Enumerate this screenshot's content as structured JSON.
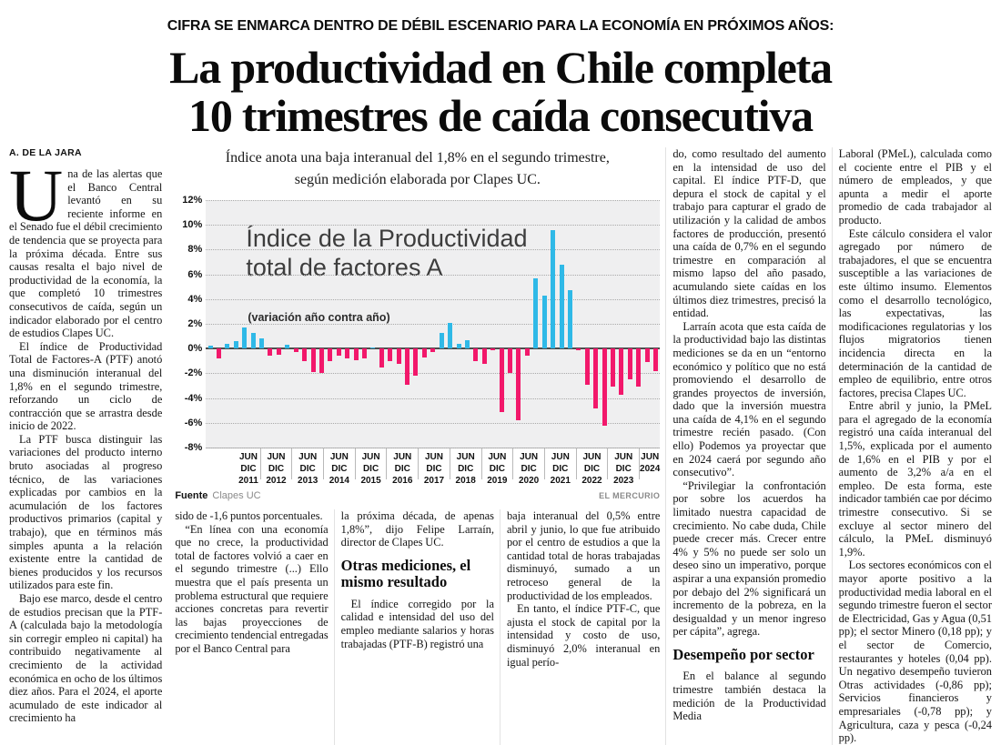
{
  "kicker": "CIFRA SE ENMARCA DENTRO DE DÉBIL ESCENARIO PARA LA ECONOMÍA EN PRÓXIMOS AÑOS:",
  "headline_line1": "La productividad en Chile completa",
  "headline_line2": "10 trimestres de caída consecutiva",
  "byline": "A. DE LA JARA",
  "chart": {
    "subtitle_line1": "Índice anota una baja interanual del 1,8% en el segundo trimestre,",
    "subtitle_line2": "según medición elaborada por Clapes UC.",
    "source_label": "Fuente",
    "source_value": "Clapes UC",
    "credit": "EL MERCURIO"
  },
  "chart_data": {
    "type": "bar",
    "title_line1": "Índice de la Productividad",
    "title_line2": "total de factores A",
    "note": "(variación año contra año)",
    "ylabel": "variación año contra año (%)",
    "ylim": [
      -8,
      12
    ],
    "ytick_step": 2,
    "ytick_labels": [
      "12%",
      "10%",
      "8%",
      "6%",
      "4%",
      "2%",
      "0%",
      "-2%",
      "-4%",
      "-6%",
      "-8%"
    ],
    "grid": "dotted horizontal",
    "colors": {
      "positive": "#2fb9e7",
      "negative": "#f2186b",
      "panel": "#efeff0"
    },
    "year_groups": [
      {
        "year": "2011",
        "ticks": "JUN DIC",
        "count": 3
      },
      {
        "year": "2012",
        "ticks": "JUN DIC",
        "count": 4
      },
      {
        "year": "2013",
        "ticks": "JUN DIC",
        "count": 4
      },
      {
        "year": "2014",
        "ticks": "JUN DIC",
        "count": 4
      },
      {
        "year": "2015",
        "ticks": "JUN DIC",
        "count": 4
      },
      {
        "year": "2016",
        "ticks": "JUN DIC",
        "count": 4
      },
      {
        "year": "2017",
        "ticks": "JUN DIC",
        "count": 4
      },
      {
        "year": "2018",
        "ticks": "JUN DIC",
        "count": 4
      },
      {
        "year": "2019",
        "ticks": "JUN DIC",
        "count": 4
      },
      {
        "year": "2020",
        "ticks": "JUN DIC",
        "count": 4
      },
      {
        "year": "2021",
        "ticks": "JUN DIC",
        "count": 4
      },
      {
        "year": "2022",
        "ticks": "JUN DIC",
        "count": 4
      },
      {
        "year": "2023",
        "ticks": "JUN DIC",
        "count": 4
      },
      {
        "year": "2024",
        "ticks": "JUN",
        "count": 2
      }
    ],
    "values": [
      0.2,
      -0.8,
      0.4,
      0.6,
      1.7,
      1.25,
      0.8,
      -0.6,
      -0.5,
      0.3,
      -0.3,
      -1.05,
      -1.9,
      -2.0,
      -1.05,
      -0.6,
      -0.8,
      -0.95,
      -0.8,
      0.1,
      -1.5,
      -1.05,
      -1.2,
      -2.9,
      -2.2,
      -0.7,
      -0.3,
      1.3,
      2.1,
      0.4,
      0.7,
      -1.0,
      -1.2,
      -0.05,
      -5.1,
      -2.0,
      -5.8,
      -0.6,
      5.7,
      4.3,
      9.6,
      6.8,
      4.7,
      -0.1,
      -2.9,
      -4.85,
      -6.2,
      -3.1,
      -3.7,
      -2.5,
      -3.05,
      -1.1,
      -1.8
    ]
  },
  "columns": {
    "col1": {
      "blocks": [
        {
          "type": "p",
          "dropcap": "U",
          "text": "na de las alertas que el Banco Central levantó en su reciente informe en el Senado fue el débil crecimiento de tendencia que se proyecta para la próxima década. Entre sus causas resalta el bajo nivel de productividad de la economía, la que completó 10 trimestres consecutivos de caída, según un indicador elaborado por el centro de estudios Clapes UC."
        },
        {
          "type": "p",
          "text": "El índice de Productividad Total de Factores-A (PTF) anotó una disminución interanual del 1,8% en el segundo trimestre, reforzando un ciclo de contracción que se arrastra desde inicio de 2022."
        },
        {
          "type": "p",
          "text": "La PTF busca distinguir las variaciones del producto interno bruto asociadas al progreso técnico, de las variaciones explicadas por cambios en la acumulación de los factores productivos primarios (capital y trabajo), que en términos más simples apunta a la relación existente entre la cantidad de bienes producidos y los recursos utilizados para este fin."
        },
        {
          "type": "p",
          "text": "Bajo ese marco, desde el centro de estudios precisan que la PTF-A (calculada bajo la metodología sin corregir empleo ni capital) ha contribuido negativamente al crecimiento de la actividad económica en ocho de los últimos diez años. Para el 2024, el aporte acumulado de este indicador al crecimiento ha"
        }
      ]
    },
    "col2": {
      "blocks": [
        {
          "type": "p",
          "indent": false,
          "text": "sido de -1,6 puntos porcentuales."
        },
        {
          "type": "p",
          "text": "“En línea con una economía que no crece, la productividad total de factores volvió a caer en el segundo trimestre (...) Ello muestra que el país presenta un problema estructural que requiere acciones concretas para revertir las bajas proyecciones de crecimiento tendencial entregadas por el Banco Central para"
        }
      ]
    },
    "col3": {
      "blocks": [
        {
          "type": "p",
          "indent": false,
          "text": "la próxima década, de apenas 1,8%”, dijo Felipe Larraín, director de Clapes UC."
        },
        {
          "type": "subhead",
          "text": "Otras mediciones, el mismo resultado"
        },
        {
          "type": "p",
          "text": "El índice corregido por la calidad e intensidad del uso del empleo mediante salarios y horas trabajadas (PTF-B) registró una"
        }
      ]
    },
    "col4": {
      "blocks": [
        {
          "type": "p",
          "indent": false,
          "text": "baja interanual del 0,5% entre abril y junio, lo que fue atribuido por el centro de estudios a que la cantidad total de horas trabajadas disminuyó, sumado a un retroceso general de la productividad de los empleados."
        },
        {
          "type": "p",
          "text": "En tanto, el índice PTF-C, que ajusta el stock de capital por la intensidad y costo de uso, disminuyó 2,0% interanual en igual perío-"
        }
      ]
    },
    "col5": {
      "blocks": [
        {
          "type": "p",
          "indent": false,
          "text": "do, como resultado del aumento en la intensidad de uso del capital. El índice PTF-D, que depura el stock de capital y el trabajo para capturar el grado de utilización y la calidad de ambos factores de producción, presentó una caída de 0,7% en el segundo trimestre en comparación al mismo lapso del año pasado, acumulando siete caídas en los últimos diez trimestres, precisó la entidad."
        },
        {
          "type": "p",
          "text": "Larraín acota que esta caída de la productividad bajo las distintas mediciones se da en un “entorno económico y político que no está promoviendo el desarrollo de grandes proyectos de inversión, dado que la inversión muestra una caída de 4,1% en el segundo trimestre recién pasado. (Con ello) Podemos ya proyectar que en 2024 caerá por segundo año consecutivo”."
        },
        {
          "type": "p",
          "text": "“Privilegiar la confrontación por sobre los acuerdos ha limitado nuestra capacidad de crecimiento. No cabe duda, Chile puede crecer más. Crecer entre 4% y 5% no puede ser solo un deseo sino un imperativo, porque aspirar a una expansión promedio por debajo del 2% significará un incremento de la pobreza, en la desigualdad y un menor ingreso per cápita”, agrega."
        },
        {
          "type": "subhead",
          "text": "Desempeño por sector"
        },
        {
          "type": "p",
          "text": "En el balance al segundo trimestre también destaca la medición de la Productividad Media"
        }
      ]
    },
    "col6": {
      "blocks": [
        {
          "type": "p",
          "indent": false,
          "text": "Laboral (PMeL), calculada como el cociente entre el PIB y el número de empleados, y que apunta a medir el aporte promedio de cada trabajador al producto."
        },
        {
          "type": "p",
          "text": "Este cálculo considera el valor agregado por número de trabajadores, el que se encuentra susceptible a las variaciones de este último insumo. Elementos como el desarrollo tecnológico, las expectativas, las modificaciones regulatorias y los flujos migratorios tienen incidencia directa en la determinación de la cantidad de empleo de equilibrio, entre otros factores, precisa Clapes UC."
        },
        {
          "type": "p",
          "text": "Entre abril y junio, la PMeL para el agregado de la economía registró una caída interanual del 1,5%, explicada por el aumento de 1,6% en el PIB y por el aumento de 3,2% a/a en el empleo. De esta forma, este indicador también cae por décimo trimestre consecutivo. Si se excluye al sector minero del cálculo, la PMeL disminuyó 1,9%."
        },
        {
          "type": "p",
          "text": "Los sectores económicos con el mayor aporte positivo a la productividad media laboral en el segundo trimestre fueron el sector de Electricidad, Gas y Agua (0,51 pp); el sector Minero (0,18 pp); y el sector de Comercio, restaurantes y hoteles (0,04 pp). Un negativo desempeño tuvieron Otras actividades (-0,86 pp); Servicios financieros y empresariales (-0,78 pp); y Agricultura, caza y pesca (-0,24 pp)."
        }
      ]
    }
  }
}
